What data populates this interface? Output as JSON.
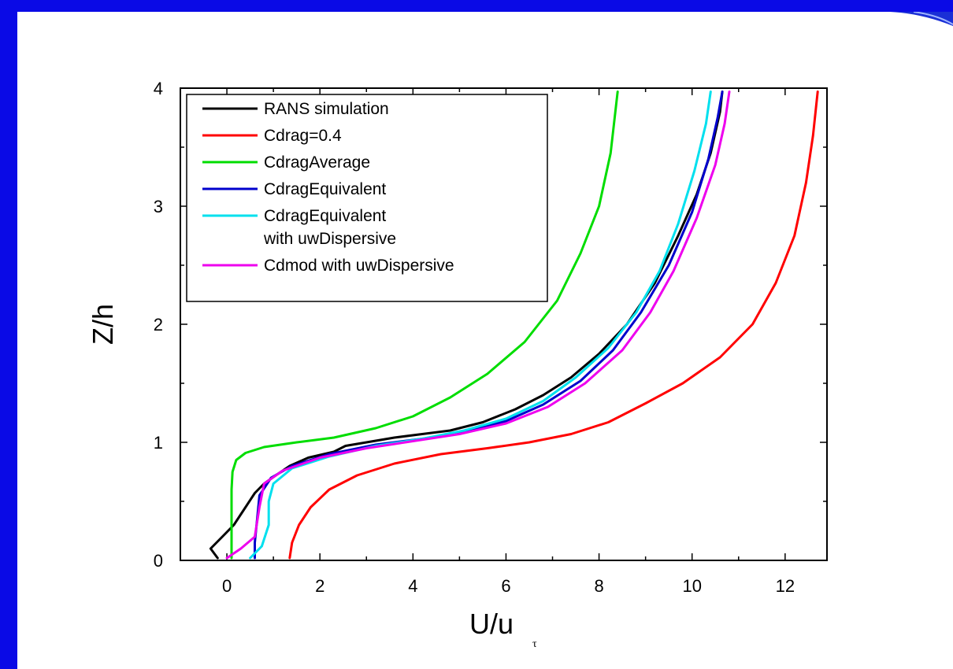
{
  "chart_data": {
    "type": "line",
    "title": "",
    "xlabel": "U/u",
    "xlabel_sub": "τ",
    "ylabel": "Z/h",
    "xlim": [
      -1,
      12.9
    ],
    "ylim": [
      0,
      4
    ],
    "x_ticks": [
      "0",
      "2",
      "4",
      "6",
      "8",
      "10",
      "12"
    ],
    "y_ticks": [
      "0",
      "1",
      "2",
      "3",
      "4"
    ],
    "legend_position": "top-left",
    "series": [
      {
        "name": "RANS simulation",
        "color": "#000000",
        "points": [
          [
            -0.2,
            0.02
          ],
          [
            -0.35,
            0.1
          ],
          [
            -0.1,
            0.2
          ],
          [
            0.15,
            0.3
          ],
          [
            0.4,
            0.45
          ],
          [
            0.6,
            0.57
          ],
          [
            0.8,
            0.65
          ],
          [
            1.05,
            0.72
          ],
          [
            1.35,
            0.8
          ],
          [
            1.75,
            0.87
          ],
          [
            2.3,
            0.92
          ],
          [
            2.55,
            0.97
          ],
          [
            3.0,
            1.0
          ],
          [
            3.6,
            1.04
          ],
          [
            4.2,
            1.07
          ],
          [
            4.8,
            1.1
          ],
          [
            5.5,
            1.17
          ],
          [
            6.2,
            1.28
          ],
          [
            6.8,
            1.4
          ],
          [
            7.4,
            1.55
          ],
          [
            8.0,
            1.75
          ],
          [
            8.6,
            2.0
          ],
          [
            9.2,
            2.35
          ],
          [
            9.7,
            2.75
          ],
          [
            10.1,
            3.1
          ],
          [
            10.4,
            3.45
          ],
          [
            10.6,
            3.8
          ],
          [
            10.65,
            3.97
          ]
        ]
      },
      {
        "name": "Cdrag=0.4",
        "color": "#ff0000",
        "points": [
          [
            1.35,
            0.02
          ],
          [
            1.4,
            0.15
          ],
          [
            1.55,
            0.3
          ],
          [
            1.8,
            0.45
          ],
          [
            2.2,
            0.6
          ],
          [
            2.8,
            0.72
          ],
          [
            3.6,
            0.82
          ],
          [
            4.6,
            0.9
          ],
          [
            5.6,
            0.95
          ],
          [
            6.5,
            1.0
          ],
          [
            7.4,
            1.07
          ],
          [
            8.2,
            1.17
          ],
          [
            9.0,
            1.33
          ],
          [
            9.8,
            1.5
          ],
          [
            10.6,
            1.72
          ],
          [
            11.3,
            2.0
          ],
          [
            11.8,
            2.35
          ],
          [
            12.2,
            2.75
          ],
          [
            12.45,
            3.2
          ],
          [
            12.6,
            3.6
          ],
          [
            12.7,
            3.97
          ]
        ]
      },
      {
        "name": "CdragAverage",
        "color": "#00dd00",
        "points": [
          [
            0.1,
            0.02
          ],
          [
            0.1,
            0.3
          ],
          [
            0.1,
            0.6
          ],
          [
            0.12,
            0.75
          ],
          [
            0.2,
            0.85
          ],
          [
            0.4,
            0.91
          ],
          [
            0.8,
            0.96
          ],
          [
            1.5,
            1.0
          ],
          [
            2.3,
            1.04
          ],
          [
            3.2,
            1.12
          ],
          [
            4.0,
            1.22
          ],
          [
            4.8,
            1.38
          ],
          [
            5.6,
            1.58
          ],
          [
            6.4,
            1.85
          ],
          [
            7.1,
            2.2
          ],
          [
            7.6,
            2.6
          ],
          [
            8.0,
            3.0
          ],
          [
            8.25,
            3.45
          ],
          [
            8.4,
            3.97
          ]
        ]
      },
      {
        "name": "CdragEquivalent",
        "color": "#0000cc",
        "points": [
          [
            0.6,
            0.02
          ],
          [
            0.6,
            0.15
          ],
          [
            0.65,
            0.35
          ],
          [
            0.7,
            0.55
          ],
          [
            0.95,
            0.7
          ],
          [
            1.4,
            0.8
          ],
          [
            2.2,
            0.9
          ],
          [
            3.2,
            0.98
          ],
          [
            4.2,
            1.03
          ],
          [
            5.1,
            1.09
          ],
          [
            6.0,
            1.18
          ],
          [
            6.8,
            1.32
          ],
          [
            7.6,
            1.52
          ],
          [
            8.3,
            1.78
          ],
          [
            8.9,
            2.1
          ],
          [
            9.5,
            2.5
          ],
          [
            10.0,
            2.95
          ],
          [
            10.35,
            3.4
          ],
          [
            10.55,
            3.75
          ],
          [
            10.65,
            3.97
          ]
        ]
      },
      {
        "name": "CdragEquivalent with uwDispersive",
        "color": "#00e0ee",
        "points": [
          [
            0.5,
            0.02
          ],
          [
            0.75,
            0.12
          ],
          [
            0.9,
            0.3
          ],
          [
            0.9,
            0.5
          ],
          [
            1.0,
            0.65
          ],
          [
            1.4,
            0.78
          ],
          [
            2.2,
            0.88
          ],
          [
            3.2,
            0.97
          ],
          [
            4.2,
            1.03
          ],
          [
            5.1,
            1.1
          ],
          [
            6.0,
            1.2
          ],
          [
            6.8,
            1.35
          ],
          [
            7.5,
            1.55
          ],
          [
            8.2,
            1.8
          ],
          [
            8.8,
            2.1
          ],
          [
            9.3,
            2.45
          ],
          [
            9.7,
            2.85
          ],
          [
            10.05,
            3.3
          ],
          [
            10.3,
            3.7
          ],
          [
            10.4,
            3.97
          ]
        ]
      },
      {
        "name": "Cdmod with uwDispersive",
        "color": "#ee00ee",
        "points": [
          [
            0.0,
            0.02
          ],
          [
            0.3,
            0.1
          ],
          [
            0.6,
            0.2
          ],
          [
            0.7,
            0.45
          ],
          [
            0.8,
            0.65
          ],
          [
            1.2,
            0.76
          ],
          [
            2.0,
            0.87
          ],
          [
            3.0,
            0.95
          ],
          [
            4.0,
            1.01
          ],
          [
            5.0,
            1.07
          ],
          [
            6.0,
            1.16
          ],
          [
            6.9,
            1.3
          ],
          [
            7.7,
            1.5
          ],
          [
            8.5,
            1.78
          ],
          [
            9.1,
            2.1
          ],
          [
            9.6,
            2.45
          ],
          [
            10.1,
            2.9
          ],
          [
            10.5,
            3.35
          ],
          [
            10.7,
            3.7
          ],
          [
            10.8,
            3.97
          ]
        ]
      }
    ]
  }
}
